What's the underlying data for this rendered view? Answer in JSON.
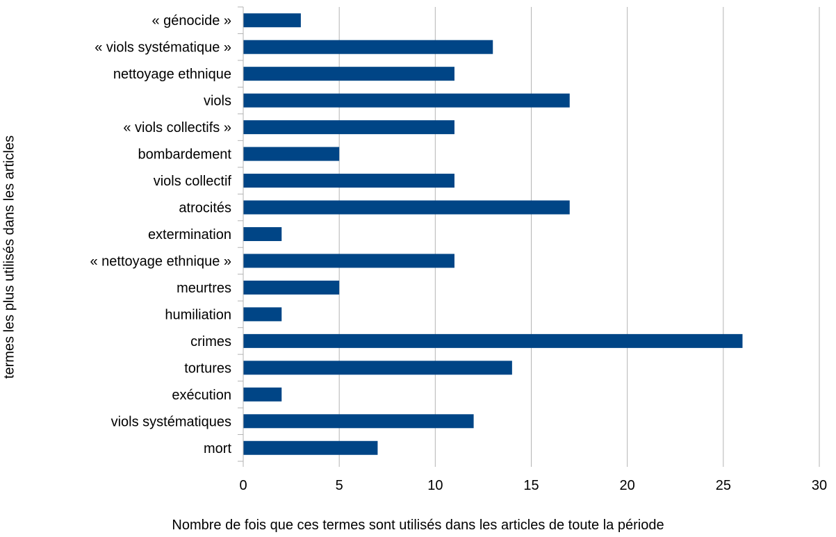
{
  "chart_data": {
    "type": "bar",
    "orientation": "horizontal",
    "categories": [
      "« génocide »",
      "« viols systématique »",
      "nettoyage ethnique",
      "viols",
      "« viols collectifs »",
      "bombardement",
      "viols collectif",
      "atrocités",
      "extermination",
      "« nettoyage ethnique »",
      "meurtres",
      "humiliation",
      "crimes",
      "tortures",
      "exécution",
      "viols systématiques",
      "mort"
    ],
    "values": [
      3,
      13,
      11,
      17,
      11,
      5,
      11,
      17,
      2,
      11,
      5,
      2,
      26,
      14,
      2,
      12,
      7
    ],
    "xlabel": "Nombre de fois que ces termes sont utilisés dans les articles de toute la période",
    "ylabel": "termes les plus utilisés dans les articles",
    "xlim": [
      0,
      30
    ],
    "xticks": [
      0,
      5,
      10,
      15,
      20,
      25,
      30
    ],
    "grid": "vertical",
    "legend": "none",
    "bar_color": "#004586",
    "grid_color": "#b3b3b3"
  }
}
